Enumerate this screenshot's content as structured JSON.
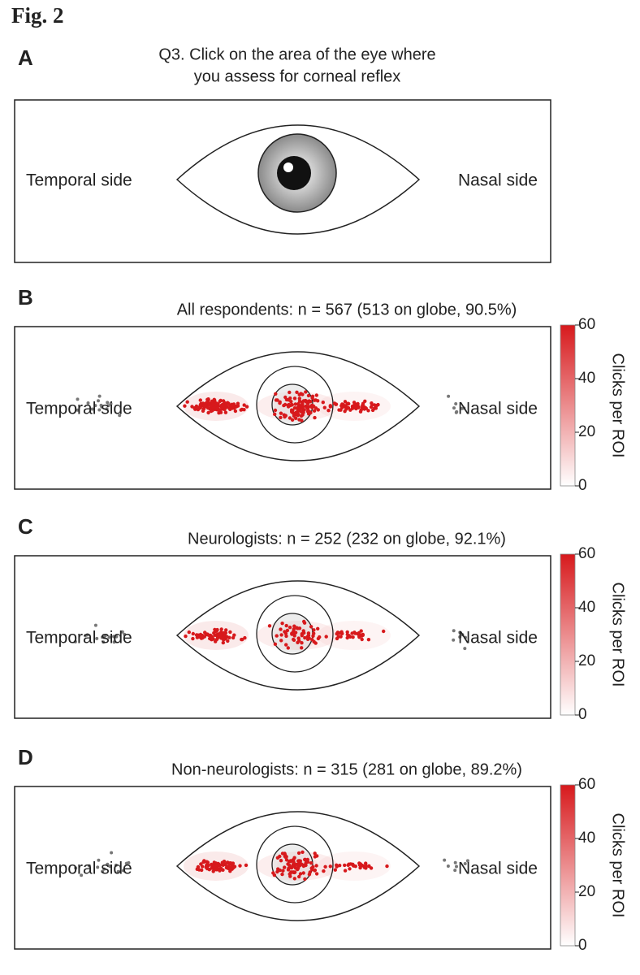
{
  "figure": {
    "label": "Fig. 2",
    "panels": [
      {
        "letter": "A",
        "title": [
          "Q3. Click on the area of the eye where",
          "you assess for corneal reflex"
        ],
        "left_label": "Temporal side",
        "right_label": "Nasal side"
      },
      {
        "letter": "B",
        "title": [
          "All respondents: n = 567 (513 on globe, 90.5%)"
        ],
        "left_label": "Temporal side",
        "right_label": "Nasal side",
        "colorbar": {
          "label": "Clicks per ROI",
          "range": [
            0,
            60
          ],
          "ticks": [
            0,
            20,
            40,
            60
          ]
        }
      },
      {
        "letter": "C",
        "title": [
          "Neurologists: n = 252 (232 on globe, 92.1%)"
        ],
        "left_label": "Temporal side",
        "right_label": "Nasal side",
        "colorbar": {
          "label": "Clicks per ROI",
          "range": [
            0,
            60
          ],
          "ticks": [
            0,
            20,
            40,
            60
          ]
        }
      },
      {
        "letter": "D",
        "title": [
          "Non-neurologists: n = 315 (281 on globe, 89.2%)"
        ],
        "left_label": "Temporal side",
        "right_label": "Nasal side",
        "colorbar": {
          "label": "Clicks per ROI",
          "range": [
            0,
            60
          ],
          "ticks": [
            0,
            20,
            40,
            60
          ]
        }
      }
    ]
  }
}
